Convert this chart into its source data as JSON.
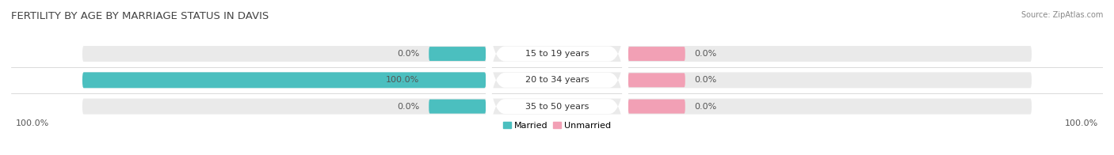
{
  "title": "FERTILITY BY AGE BY MARRIAGE STATUS IN DAVIS",
  "source": "Source: ZipAtlas.com",
  "categories": [
    "15 to 19 years",
    "20 to 34 years",
    "35 to 50 years"
  ],
  "married_pct": [
    0.0,
    100.0,
    0.0
  ],
  "unmarried_pct": [
    0.0,
    0.0,
    0.0
  ],
  "married_color": "#4BBFBF",
  "unmarried_color": "#F2A0B5",
  "bar_bg_color": "#EAEAEA",
  "center_label_bg": "#FFFFFF",
  "title_color": "#444444",
  "source_color": "#888888",
  "label_color": "#555555",
  "x_left_label": "100.0%",
  "x_right_label": "100.0%",
  "legend_married": "Married",
  "legend_unmarried": "Unmarried",
  "title_fontsize": 9.5,
  "label_fontsize": 8.0,
  "source_fontsize": 7.0
}
